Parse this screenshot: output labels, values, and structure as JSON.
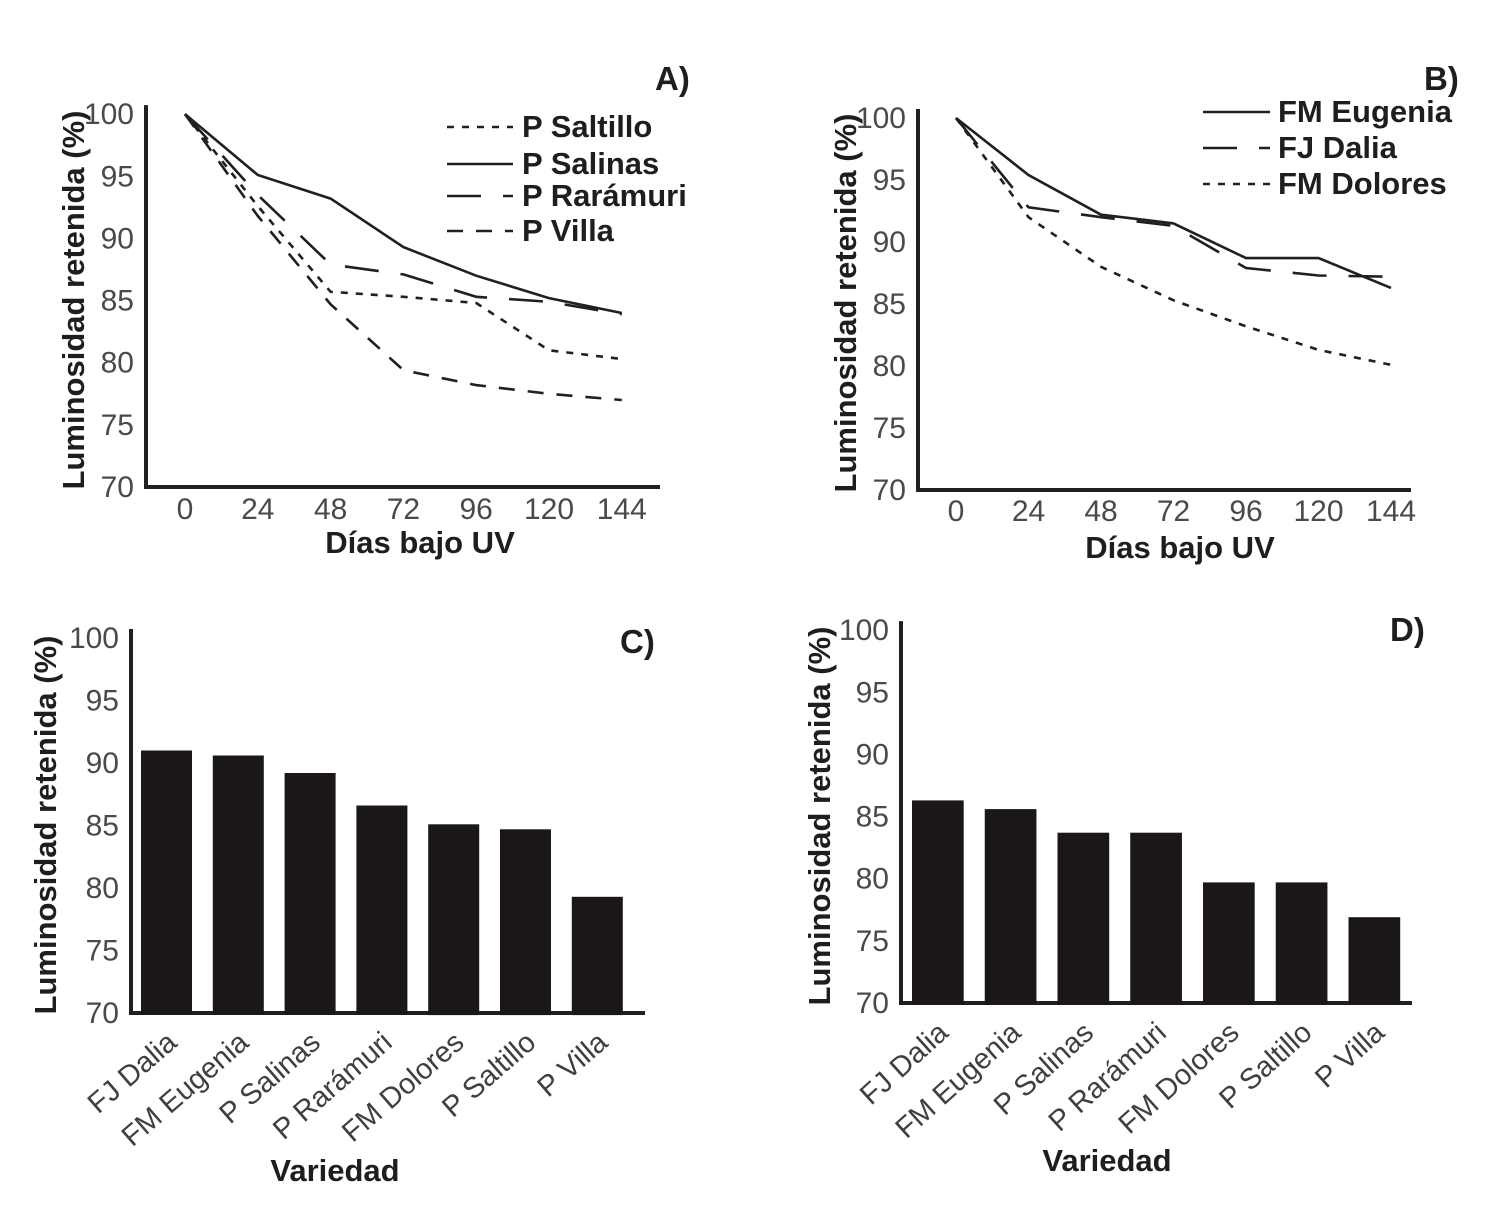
{
  "figure": {
    "background": "#ffffff",
    "ink": "#231f20",
    "muted_text": "#4a4a4a"
  },
  "chart_data": [
    {
      "id": "panel-a",
      "panel_label": "A)",
      "type": "line",
      "title": "",
      "xlabel": "Días bajo UV",
      "ylabel": "Luminosidad retenida (%)",
      "x": [
        0,
        24,
        48,
        72,
        96,
        120,
        144
      ],
      "xticks": [
        0,
        24,
        48,
        72,
        96,
        120,
        144
      ],
      "yticks": [
        70,
        75,
        80,
        85,
        90,
        95,
        100
      ],
      "ylim": [
        70,
        100
      ],
      "grid": false,
      "legend_position": "upper-right-inside",
      "series": [
        {
          "name": "P Saltillo",
          "line_style": "dash-short",
          "values": [
            100,
            92.6,
            85.7,
            85.3,
            84.8,
            81.0,
            80.3
          ]
        },
        {
          "name": "P Salinas",
          "line_style": "solid",
          "values": [
            100,
            95.1,
            93.2,
            89.3,
            87.0,
            85.2,
            84.0
          ]
        },
        {
          "name": "P Rarámuri",
          "line_style": "dash-long",
          "values": [
            100,
            93.5,
            87.9,
            87.1,
            85.3,
            84.9,
            83.9
          ]
        },
        {
          "name": "P Villa",
          "line_style": "dash-medium",
          "values": [
            100,
            91.8,
            84.7,
            79.4,
            78.2,
            77.5,
            77.0
          ]
        }
      ]
    },
    {
      "id": "panel-b",
      "panel_label": "B)",
      "type": "line",
      "title": "",
      "xlabel": "Días bajo UV",
      "ylabel": "Luminosidad retenida (%)",
      "x": [
        0,
        24,
        48,
        72,
        96,
        120,
        144
      ],
      "xticks": [
        0,
        24,
        48,
        72,
        96,
        120,
        144
      ],
      "yticks": [
        70,
        75,
        80,
        85,
        90,
        95,
        100
      ],
      "ylim": [
        70,
        100
      ],
      "grid": false,
      "legend_position": "upper-right-inside",
      "series": [
        {
          "name": "FM Eugenia",
          "line_style": "solid",
          "values": [
            100,
            95.4,
            92.2,
            91.5,
            88.7,
            88.7,
            86.3
          ]
        },
        {
          "name": "FJ Dalia",
          "line_style": "dash-long",
          "values": [
            100,
            92.8,
            92.0,
            91.3,
            87.9,
            87.3,
            87.2
          ]
        },
        {
          "name": "FM Dolores",
          "line_style": "dash-short",
          "values": [
            100,
            92.0,
            88.0,
            85.3,
            83.2,
            81.3,
            80.1
          ]
        }
      ]
    },
    {
      "id": "panel-c",
      "panel_label": "C)",
      "type": "bar",
      "title": "",
      "xlabel": "Variedad",
      "ylabel": "Luminosidad retenida (%)",
      "categories": [
        "FJ Dalia",
        "FM Eugenia",
        "P Salinas",
        "P Rarámuri",
        "FM Dolores",
        "P Saltillo",
        "P Villa"
      ],
      "values": [
        91.0,
        90.6,
        89.2,
        86.6,
        85.1,
        84.7,
        79.3
      ],
      "yticks": [
        70,
        75,
        80,
        85,
        90,
        95,
        100
      ],
      "ylim": [
        70,
        100
      ],
      "grid": false,
      "bar_color": "#1b1717"
    },
    {
      "id": "panel-d",
      "panel_label": "D)",
      "type": "bar",
      "title": "",
      "xlabel": "Variedad",
      "ylabel": "Luminosidad retenida (%)",
      "categories": [
        "FJ Dalia",
        "FM Eugenia",
        "P Salinas",
        "P Rarámuri",
        "FM Dolores",
        "P Saltillo",
        "P Villa"
      ],
      "values": [
        86.3,
        85.6,
        83.7,
        83.7,
        79.7,
        79.7,
        76.9
      ],
      "yticks": [
        70,
        75,
        80,
        85,
        90,
        95,
        100
      ],
      "ylim": [
        70,
        100
      ],
      "grid": false,
      "bar_color": "#1b1717"
    }
  ]
}
